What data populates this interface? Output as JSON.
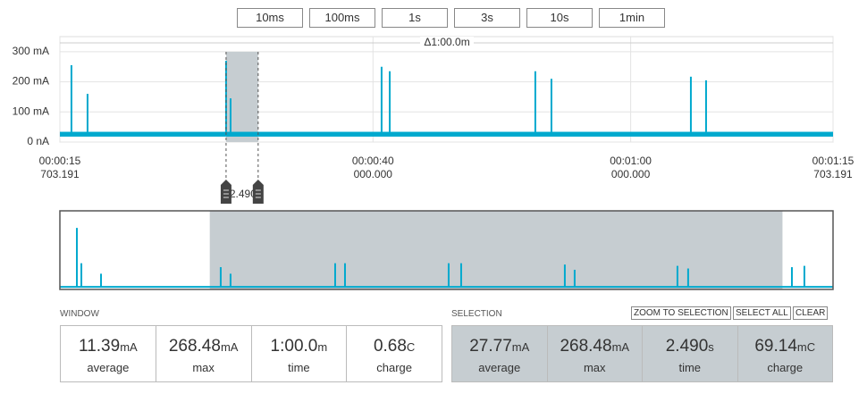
{
  "toolbar": {
    "buttons": [
      "10ms",
      "100ms",
      "1s",
      "3s",
      "10s",
      "1min"
    ]
  },
  "chart": {
    "type": "line",
    "delta_label": "Δ1:00.0m",
    "color": "#00a9ce",
    "ylim": [
      0,
      350
    ],
    "yticks": [
      {
        "value": 0,
        "label": "0 nA"
      },
      {
        "value": 100,
        "label": "100 mA"
      },
      {
        "value": 200,
        "label": "200 mA"
      },
      {
        "value": 300,
        "label": "300 mA"
      }
    ],
    "xlim": [
      15.703191,
      75.703191
    ],
    "xticks": [
      {
        "value": 15.703191,
        "label": "00:00:15",
        "sublabel": "703.191"
      },
      {
        "value": 40,
        "label": "00:00:40",
        "sublabel": "000.000"
      },
      {
        "value": 60,
        "label": "00:01:00",
        "sublabel": "000.000"
      },
      {
        "value": 75.703191,
        "label": "00:01:15",
        "sublabel": "703.191"
      }
    ],
    "baseline": [
      18,
      34
    ],
    "spike_x": [
      16.6,
      17.85,
      28.6,
      28.95,
      40.67,
      41.3,
      52.6,
      53.85,
      64.67,
      65.85
    ],
    "spike_values": [
      255,
      160,
      270,
      145,
      250,
      235,
      235,
      210,
      217,
      205
    ],
    "selection": [
      28.6,
      31.09
    ],
    "selection_label": "Δ2.490s"
  },
  "overview": {
    "type": "line",
    "xlim": [
      0,
      81
    ],
    "ylim": [
      0,
      300
    ],
    "window": [
      15.703191,
      75.703191
    ],
    "baseline": 10,
    "spike_x": [
      1.78,
      2.25,
      4.31,
      16.85,
      17.88,
      28.84,
      29.87,
      40.73,
      42.04,
      52.9,
      53.93,
      64.7,
      65.82,
      76.69,
      78.0
    ],
    "spike_values": [
      235,
      100,
      60,
      85,
      60,
      100,
      100,
      100,
      100,
      95,
      75,
      90,
      80,
      85,
      90
    ]
  },
  "window": {
    "title": "WINDOW",
    "stats": [
      {
        "value": "11.39",
        "unit": "mA",
        "label": "average"
      },
      {
        "value": "268.48",
        "unit": "mA",
        "label": "max"
      },
      {
        "value": "1:00.0",
        "unit": "m",
        "label": "time"
      },
      {
        "value": "0.68",
        "unit": "C",
        "label": "charge"
      }
    ]
  },
  "selection": {
    "title": "SELECTION",
    "actions": [
      "ZOOM TO SELECTION",
      "SELECT ALL",
      "CLEAR"
    ],
    "stats": [
      {
        "value": "27.77",
        "unit": "mA",
        "label": "average"
      },
      {
        "value": "268.48",
        "unit": "mA",
        "label": "max"
      },
      {
        "value": "2.490",
        "unit": "s",
        "label": "time"
      },
      {
        "value": "69.14",
        "unit": "mC",
        "label": "charge"
      }
    ]
  }
}
